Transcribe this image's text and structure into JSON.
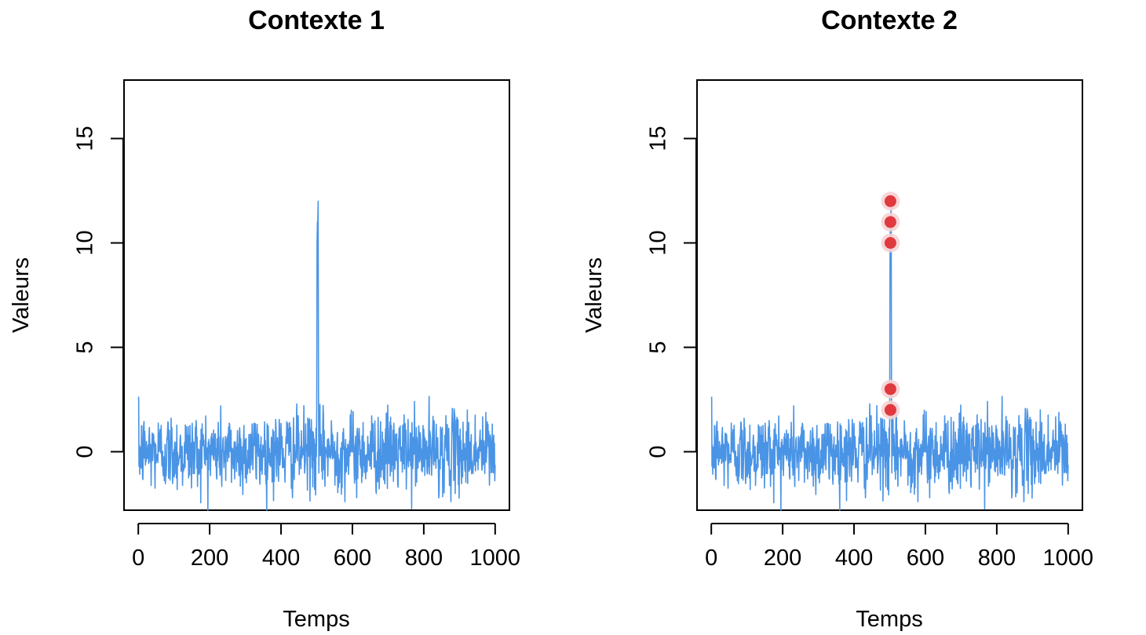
{
  "chart_data": [
    {
      "type": "line",
      "title": "Contexte 1",
      "xlabel": "Temps",
      "ylabel": "Valeurs",
      "xlim": [
        -40,
        1040
      ],
      "ylim": [
        -2.8,
        17.8
      ],
      "xticks": [
        0,
        200,
        400,
        600,
        800,
        1000
      ],
      "yticks": [
        0,
        5,
        10,
        15
      ],
      "grid": false,
      "series": [
        {
          "color": "#4a94e6",
          "n_points": 1000,
          "values_summary": "noise approximately N(0,1) for t=1..1000, range about -2.8 to 3.3",
          "spike": {
            "x": [
              500,
              501,
              502,
              503,
              504,
              505
            ],
            "y": [
              2,
              10,
              11,
              11,
              12,
              3
            ]
          }
        }
      ],
      "highlighted_points": []
    },
    {
      "type": "line",
      "title": "Contexte 2",
      "xlabel": "Temps",
      "ylabel": "Valeurs",
      "xlim": [
        -40,
        1040
      ],
      "ylim": [
        -2.8,
        17.8
      ],
      "xticks": [
        0,
        200,
        400,
        600,
        800,
        1000
      ],
      "yticks": [
        0,
        5,
        10,
        15
      ],
      "grid": false,
      "series": [
        {
          "color": "#4a94e6",
          "n_points": 1000,
          "values_summary": "noise approximately N(0,1) for t=1..1000, range about -2.8 to 3.3",
          "spike": {
            "x": [
              500,
              501,
              502,
              503,
              504,
              505
            ],
            "y": [
              2,
              10,
              11,
              11,
              12,
              3
            ]
          }
        }
      ],
      "highlighted_points": [
        {
          "x": 502,
          "y": 12
        },
        {
          "x": 502,
          "y": 11
        },
        {
          "x": 502,
          "y": 10
        },
        {
          "x": 502,
          "y": 3
        },
        {
          "x": 502,
          "y": 2
        }
      ],
      "highlight_color": "#e0393e"
    }
  ]
}
